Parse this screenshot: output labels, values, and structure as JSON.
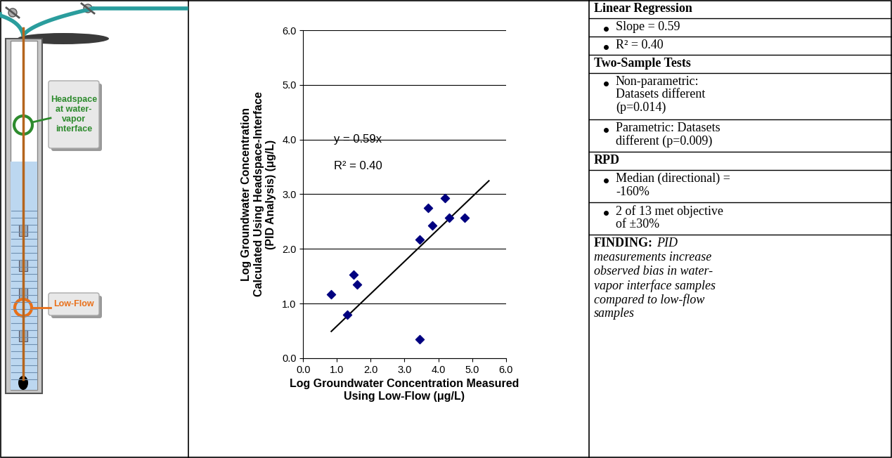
{
  "diagram": {
    "headspace_label": "Headspace at water-vapor interface",
    "low_flow_label": "Low-Flow"
  },
  "chart_data": {
    "type": "scatter",
    "x_label": "Log Groundwater Concentration Measured Using Low-Flow (μg/L)",
    "y_label": "Log Groundwater Concentration Calculated Using Headspace-Interface (PID Analysis) (μg/L)",
    "x": [
      0.83,
      1.3,
      1.48,
      1.6,
      3.45,
      3.45,
      3.7,
      3.83,
      4.2,
      4.33,
      4.78
    ],
    "values": [
      1.17,
      0.8,
      1.53,
      1.35,
      2.17,
      0.35,
      2.75,
      2.43,
      2.93,
      2.57,
      2.57
    ],
    "color": "#000080",
    "marker": "diamond",
    "xlim": [
      0,
      6
    ],
    "ylim": [
      0,
      6
    ],
    "xticks": [
      {
        "value": 0,
        "label": "0.0"
      },
      {
        "value": 1,
        "label": "1.0"
      },
      {
        "value": 2,
        "label": "2.0"
      },
      {
        "value": 3,
        "label": "3.0"
      },
      {
        "value": 4,
        "label": "4.0"
      },
      {
        "value": 5,
        "label": "5.0"
      },
      {
        "value": 6,
        "label": "6.0"
      }
    ],
    "yticks": [
      {
        "value": 0,
        "label": "0.0"
      },
      {
        "value": 1,
        "label": "1.0"
      },
      {
        "value": 2,
        "label": "2.0"
      },
      {
        "value": 3,
        "label": "3.0"
      },
      {
        "value": 4,
        "label": "4.0"
      },
      {
        "value": 5,
        "label": "5.0"
      },
      {
        "value": 6,
        "label": "6.0"
      }
    ],
    "grid": "y",
    "trendline": {
      "slope": 0.59,
      "x": [
        0.83,
        5.5
      ],
      "equation": "y = 0.59x",
      "r_squared_label": "R² = 0.40"
    }
  },
  "table": {
    "sections": [
      {
        "header": "Linear Regression",
        "items": [
          "Slope = 0.59",
          "R² = 0.40"
        ]
      },
      {
        "header": "Two-Sample Tests",
        "items": [
          "Non-parametric: Datasets different (p=0.014)",
          "Parametric: Datasets different (p=0.009)"
        ]
      },
      {
        "header": "RPD",
        "items": [
          "Median (directional) = -160%",
          "2 of 13 met objective of ±30%"
        ]
      }
    ],
    "finding": {
      "label": "FINDING:",
      "text": "PID measurements increase observed bias in water-vapor interface samples compared to low-flow samples"
    }
  }
}
